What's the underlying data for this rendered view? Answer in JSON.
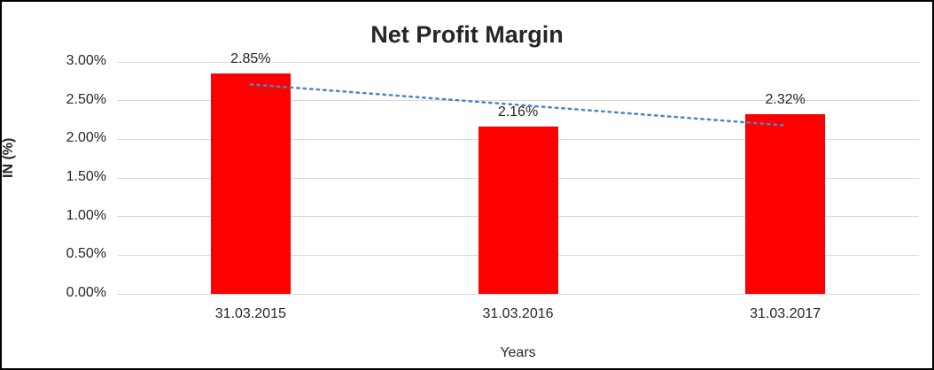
{
  "chart_data": {
    "type": "bar",
    "title": "Net Profit Margin",
    "categories": [
      "31.03.2015",
      "31.03.2016",
      "31.03.2017"
    ],
    "values": [
      2.85,
      2.16,
      2.32
    ],
    "value_labels": [
      "2.85%",
      "2.16%",
      "2.32%"
    ],
    "xlabel": "Years",
    "ylabel": "IN (%)",
    "ylim": [
      0,
      3
    ],
    "ytick_step": 0.5,
    "ytick_labels": [
      "0.00%",
      "0.50%",
      "1.00%",
      "1.50%",
      "2.00%",
      "2.50%",
      "3.00%"
    ],
    "grid": true,
    "legend": "none",
    "bar_color": "#ff0000",
    "grid_color": "#d9d9d9",
    "trendline": {
      "style": "dotted",
      "color": "#4a86c8",
      "start_value": 2.71,
      "end_value": 2.18
    }
  }
}
